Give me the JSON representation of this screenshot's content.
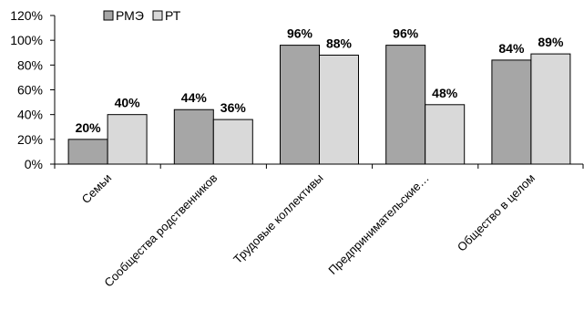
{
  "chart_data": {
    "type": "bar",
    "categories": [
      "Семьи",
      "Сообщества родственников",
      "Трудовые коллективы",
      "Предпринимательские…",
      "Общество в целом"
    ],
    "series": [
      {
        "name": "РМЭ",
        "values": [
          20,
          44,
          96,
          96,
          84
        ],
        "labels": [
          "20%",
          "44%",
          "96%",
          "96%",
          "84%"
        ],
        "color": "#a6a6a6"
      },
      {
        "name": "РТ",
        "values": [
          40,
          36,
          88,
          48,
          89
        ],
        "labels": [
          "40%",
          "36%",
          "88%",
          "48%",
          "89%"
        ],
        "color": "#d9d9d9"
      }
    ],
    "y_ticks": [
      "0%",
      "20%",
      "40%",
      "60%",
      "80%",
      "100%",
      "120%"
    ],
    "ylim": [
      0,
      120
    ],
    "ystep": 20,
    "grid": false,
    "legend_position": "top-left"
  }
}
